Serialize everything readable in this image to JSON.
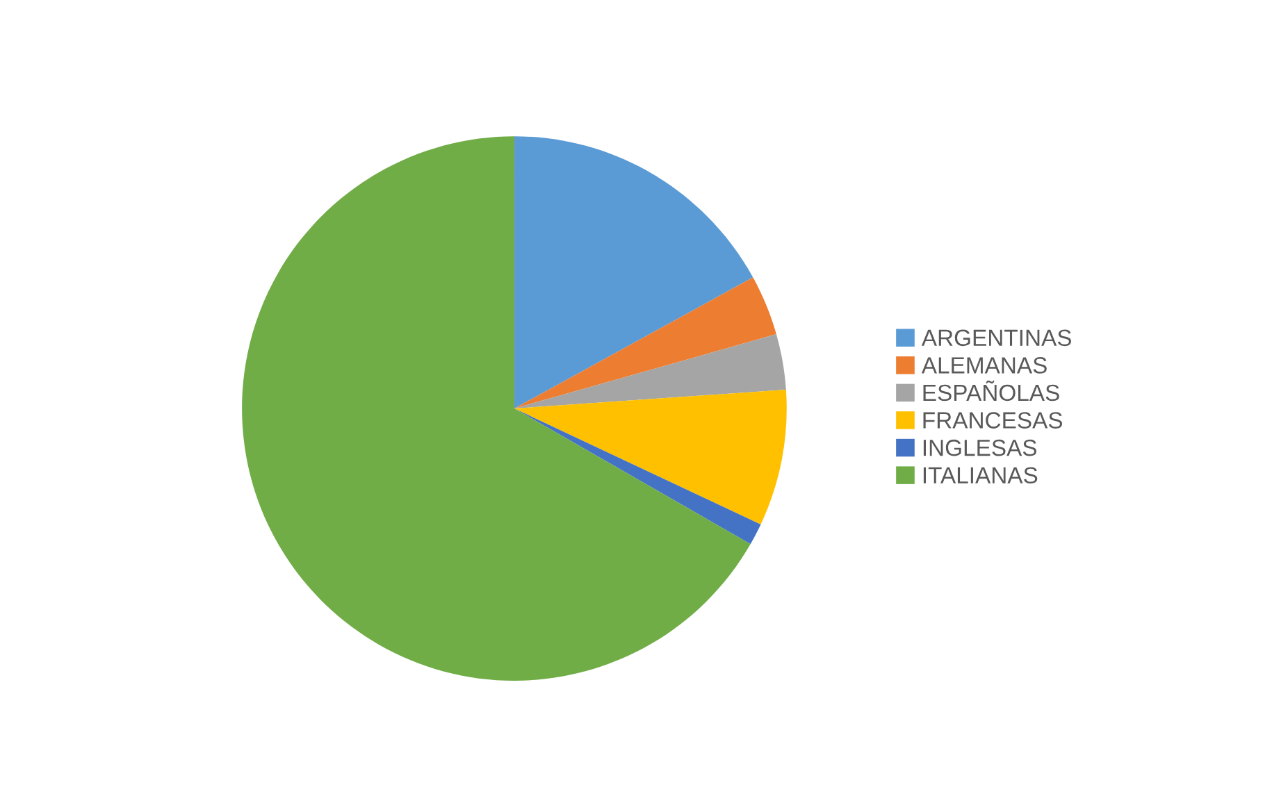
{
  "chart_data": {
    "type": "pie",
    "categories": [
      "ARGENTINAS",
      "ALEMANAS",
      "ESPAÑOLAS",
      "FRANCESAS",
      "INGLESAS",
      "ITALIANAS"
    ],
    "values": [
      17.0,
      3.6,
      3.3,
      8.1,
      1.3,
      66.7
    ],
    "colors": [
      "#5b9bd5",
      "#ed7d31",
      "#a5a5a5",
      "#ffc000",
      "#4472c4",
      "#70ad47"
    ],
    "legend": "right"
  }
}
